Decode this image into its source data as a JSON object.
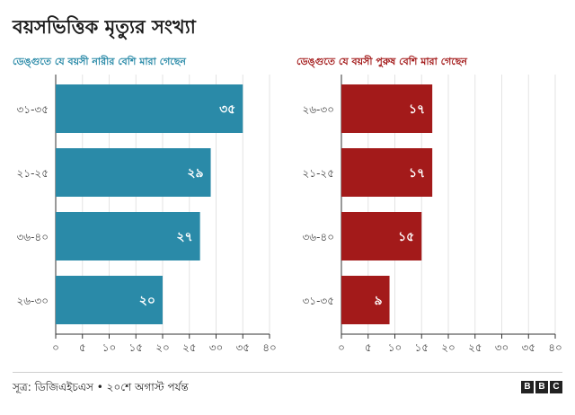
{
  "title": "বয়সভিত্তিক মৃত্যুর সংখ্যা",
  "source": "সূত্র: ডিজিএইচএস • ২০শে অগাস্ট পর্যন্ত",
  "logo": [
    "B",
    "B",
    "C"
  ],
  "colors": {
    "female": "#2a8aa8",
    "male": "#a31a1a",
    "grid": "#e3e3e3",
    "axis": "#333333"
  },
  "chart_data": [
    {
      "type": "bar",
      "orientation": "horizontal",
      "title": "ডেঙ্গুতে যে বয়সী নারীর বেশি মারা গেছেন",
      "categories": [
        "৩১-৩৫",
        "২১-২৫",
        "৩৬-৪০",
        "২৬-৩০"
      ],
      "values": [
        35,
        29,
        27,
        20
      ],
      "value_labels": [
        "৩৫",
        "২৯",
        "২৭",
        "২০"
      ],
      "xlim": [
        0,
        40
      ],
      "xticks": [
        0,
        5,
        10,
        15,
        20,
        25,
        30,
        35,
        40
      ],
      "xtick_labels": [
        "০",
        "৫",
        "১০",
        "১৫",
        "২০",
        "২৫",
        "৩০",
        "৩৫",
        "৪০"
      ],
      "grid": true,
      "color": "#2a8aa8"
    },
    {
      "type": "bar",
      "orientation": "horizontal",
      "title": "ডেঙ্গুতে যে বয়সী পুরুষ বেশি মারা গেছেন",
      "categories": [
        "২৬-৩০",
        "২১-২৫",
        "৩৬-৪০",
        "৩১-৩৫"
      ],
      "values": [
        17,
        17,
        15,
        9
      ],
      "value_labels": [
        "১৭",
        "১৭",
        "১৫",
        "৯"
      ],
      "xlim": [
        0,
        40
      ],
      "xticks": [
        0,
        5,
        10,
        15,
        20,
        25,
        30,
        35,
        40
      ],
      "xtick_labels": [
        "০",
        "৫",
        "১০",
        "১৫",
        "২০",
        "২৫",
        "৩০",
        "৩৫",
        "৪০"
      ],
      "grid": true,
      "color": "#a31a1a"
    }
  ]
}
